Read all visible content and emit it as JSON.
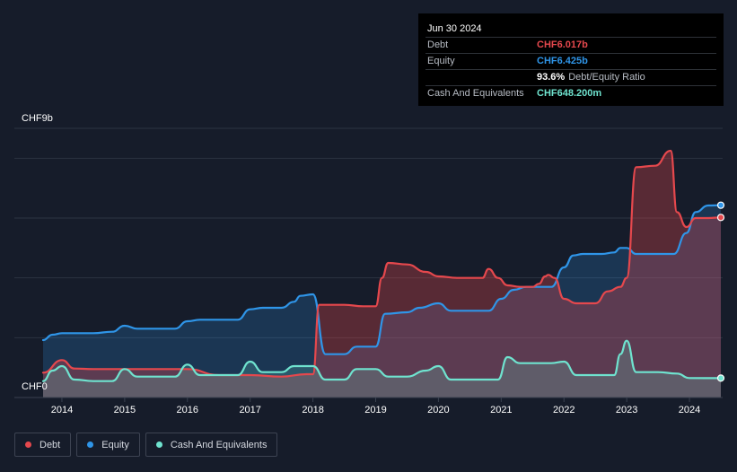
{
  "tooltip": {
    "date": "Jun 30 2024",
    "rows": [
      {
        "label": "Debt",
        "value": "CHF6.017b",
        "color": "#e5484d"
      },
      {
        "label": "Equity",
        "value": "CHF6.425b",
        "color": "#2f95e8"
      },
      {
        "label": "",
        "value": "93.6%",
        "extra": "Debt/Equity Ratio",
        "color": "#ffffff"
      },
      {
        "label": "Cash And Equivalents",
        "value": "CHF648.200m",
        "color": "#6fe3cf"
      }
    ]
  },
  "legend": [
    {
      "label": "Debt",
      "color": "#e5484d"
    },
    {
      "label": "Equity",
      "color": "#2f95e8"
    },
    {
      "label": "Cash And Equivalents",
      "color": "#6fe3cf"
    }
  ],
  "chart_data": {
    "type": "area",
    "y_top_label": "CHF9b",
    "y_bottom_label": "CHF0",
    "ylim": [
      0,
      9
    ],
    "xlim": [
      2013.7,
      2024.5
    ],
    "x_ticks": [
      "2014",
      "2015",
      "2016",
      "2017",
      "2018",
      "2019",
      "2020",
      "2021",
      "2022",
      "2023",
      "2024"
    ],
    "x_tick_values": [
      2014,
      2015,
      2016,
      2017,
      2018,
      2019,
      2020,
      2021,
      2022,
      2023,
      2024
    ],
    "grid": true,
    "legend_position": "bottom-left",
    "series": [
      {
        "name": "Debt",
        "color": "#e5484d",
        "x": [
          2013.7,
          2014.0,
          2014.2,
          2014.5,
          2015.0,
          2015.5,
          2016.0,
          2016.5,
          2017.0,
          2017.5,
          2017.9,
          2018.0,
          2018.1,
          2018.2,
          2018.5,
          2018.8,
          2019.0,
          2019.1,
          2019.2,
          2019.5,
          2019.8,
          2020.0,
          2020.3,
          2020.7,
          2020.8,
          2020.95,
          2021.1,
          2021.3,
          2021.5,
          2021.6,
          2021.7,
          2021.75,
          2021.85,
          2022.0,
          2022.2,
          2022.5,
          2022.7,
          2022.9,
          2023.0,
          2023.15,
          2023.45,
          2023.7,
          2023.8,
          2023.95,
          2024.1,
          2024.3,
          2024.5
        ],
        "values": [
          0.83,
          1.25,
          0.97,
          0.95,
          0.95,
          0.95,
          0.95,
          0.75,
          0.75,
          0.7,
          0.78,
          0.78,
          3.1,
          3.1,
          3.1,
          3.05,
          3.05,
          4.0,
          4.5,
          4.45,
          4.2,
          4.05,
          4.0,
          4.0,
          4.3,
          4.0,
          3.75,
          3.7,
          3.7,
          3.8,
          4.05,
          4.1,
          4.0,
          3.3,
          3.15,
          3.15,
          3.55,
          3.7,
          4.0,
          7.7,
          7.75,
          8.25,
          6.2,
          5.7,
          6.0,
          6.0,
          6.02
        ]
      },
      {
        "name": "Equity",
        "color": "#2f95e8",
        "x": [
          2013.7,
          2013.85,
          2014.0,
          2014.5,
          2014.8,
          2015.0,
          2015.2,
          2015.5,
          2015.8,
          2016.0,
          2016.2,
          2016.5,
          2016.8,
          2017.0,
          2017.2,
          2017.5,
          2017.7,
          2017.8,
          2018.0,
          2018.2,
          2018.5,
          2018.7,
          2019.0,
          2019.15,
          2019.5,
          2019.7,
          2020.0,
          2020.2,
          2020.5,
          2020.8,
          2021.0,
          2021.2,
          2021.4,
          2021.6,
          2021.8,
          2022.0,
          2022.15,
          2022.3,
          2022.6,
          2022.8,
          2022.9,
          2023.0,
          2023.15,
          2023.5,
          2023.75,
          2023.95,
          2024.1,
          2024.3,
          2024.5
        ],
        "values": [
          1.92,
          2.1,
          2.15,
          2.15,
          2.2,
          2.4,
          2.3,
          2.3,
          2.3,
          2.55,
          2.6,
          2.6,
          2.6,
          2.95,
          3.0,
          3.0,
          3.2,
          3.4,
          3.45,
          1.45,
          1.45,
          1.7,
          1.7,
          2.8,
          2.85,
          3.0,
          3.15,
          2.9,
          2.9,
          2.9,
          3.3,
          3.6,
          3.7,
          3.7,
          3.7,
          4.35,
          4.75,
          4.8,
          4.8,
          4.85,
          5.0,
          5.0,
          4.8,
          4.8,
          4.8,
          5.5,
          6.2,
          6.42,
          6.43
        ]
      },
      {
        "name": "Cash And Equivalents",
        "color": "#6fe3cf",
        "x": [
          2013.7,
          2013.85,
          2014.0,
          2014.2,
          2014.5,
          2014.8,
          2015.0,
          2015.2,
          2015.5,
          2015.8,
          2016.0,
          2016.2,
          2016.5,
          2016.8,
          2017.0,
          2017.2,
          2017.5,
          2017.7,
          2018.0,
          2018.2,
          2018.5,
          2018.7,
          2019.0,
          2019.2,
          2019.5,
          2019.8,
          2020.0,
          2020.2,
          2020.5,
          2020.8,
          2020.95,
          2021.1,
          2021.3,
          2021.5,
          2021.8,
          2022.0,
          2022.2,
          2022.5,
          2022.8,
          2022.9,
          2023.0,
          2023.15,
          2023.5,
          2023.8,
          2024.0,
          2024.5
        ],
        "values": [
          0.55,
          0.9,
          1.05,
          0.6,
          0.55,
          0.55,
          0.95,
          0.7,
          0.7,
          0.7,
          1.1,
          0.75,
          0.75,
          0.75,
          1.2,
          0.85,
          0.85,
          1.05,
          1.05,
          0.6,
          0.6,
          0.95,
          0.95,
          0.7,
          0.7,
          0.9,
          1.05,
          0.6,
          0.6,
          0.6,
          0.6,
          1.35,
          1.15,
          1.15,
          1.15,
          1.2,
          0.75,
          0.75,
          0.75,
          1.45,
          1.9,
          0.85,
          0.85,
          0.8,
          0.65,
          0.648
        ]
      }
    ]
  }
}
